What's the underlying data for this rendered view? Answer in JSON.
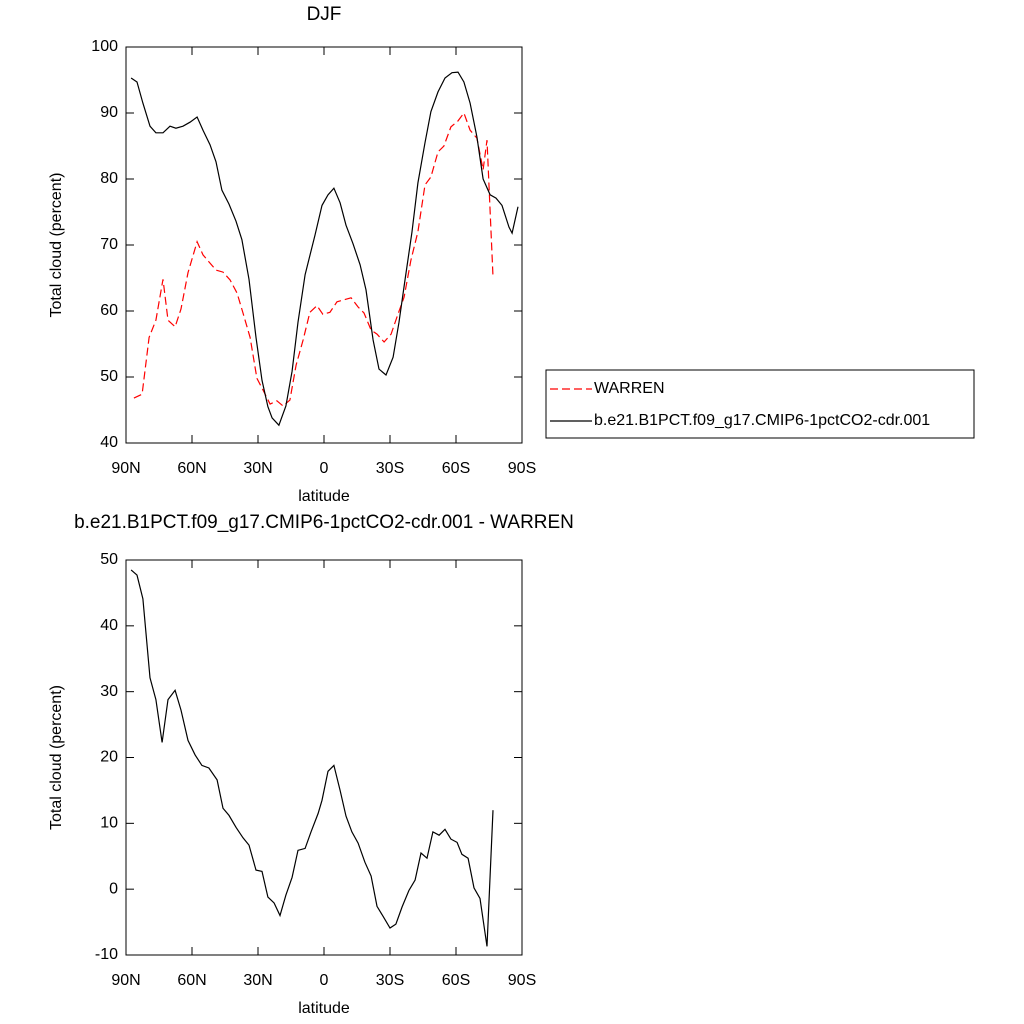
{
  "chart_data": [
    {
      "type": "line",
      "title": "DJF",
      "xlabel": "latitude",
      "ylabel": "Total cloud (percent)",
      "xlim": [
        90,
        -90
      ],
      "xticks": [
        {
          "value": 90,
          "label": "90N"
        },
        {
          "value": 60,
          "label": "60N"
        },
        {
          "value": 30,
          "label": "30N"
        },
        0,
        {
          "value": -30,
          "label": "30S"
        },
        {
          "value": -60,
          "label": "60S"
        },
        {
          "value": -90,
          "label": "90S"
        }
      ],
      "ylim": [
        40,
        100
      ],
      "yticks": [
        40,
        50,
        60,
        70,
        80,
        90,
        100
      ],
      "legend": "right",
      "series": [
        {
          "name": "WARREN",
          "color": "#ff0000",
          "line_style": "dashed",
          "x": [
            86.4,
            82.7,
            79.5,
            76.4,
            73.2,
            70.9,
            67.7,
            65,
            61.8,
            57.7,
            55,
            49.1,
            45.9,
            42.7,
            39.5,
            36.8,
            33.6,
            30.5,
            27.7,
            24.5,
            21.4,
            18.6,
            15.5,
            12.7,
            9.5,
            6.4,
            3.2,
            0.5,
            -2.7,
            -5.9,
            -9.1,
            -12.3,
            -15.5,
            -18.2,
            -21.4,
            -24.1,
            -27.3,
            -30.5,
            -33.2,
            -36.4,
            -39.5,
            -42.7,
            -45.9,
            -48.6,
            -51.8,
            -54.5,
            -57.7,
            -60.9,
            -63.6,
            -66.4,
            -69.5,
            -72.3,
            -74.1,
            -76.8
          ],
          "values": [
            46.8,
            47.4,
            56,
            58.6,
            64.8,
            58.6,
            57.6,
            60.3,
            65.8,
            70.5,
            68.5,
            66.2,
            65.9,
            64.7,
            62.7,
            59.7,
            56,
            49.8,
            48,
            45.9,
            46.4,
            45.6,
            46.5,
            51.8,
            55.6,
            59.8,
            60.8,
            59.5,
            59.8,
            61.4,
            61.7,
            62,
            60.6,
            59.7,
            57.1,
            56.5,
            55.3,
            56.5,
            59.1,
            62.1,
            67.7,
            72,
            79.1,
            80.3,
            84.1,
            85,
            87.9,
            88.8,
            90,
            87.4,
            86.2,
            81.4,
            85.9,
            65.2
          ]
        },
        {
          "name": "b.e21.B1PCT.f09_g17.CMIP6-1pctCO2-cdr.001",
          "color": "#000000",
          "line_style": "solid",
          "x": [
            87.7,
            85,
            82.3,
            79.1,
            76.4,
            73.2,
            70,
            67.3,
            64.1,
            60.9,
            57.7,
            55,
            51.8,
            49.1,
            46.4,
            43.2,
            40,
            37.3,
            34.1,
            30.9,
            28.2,
            25.5,
            23.6,
            20.5,
            17.3,
            14.5,
            11.8,
            8.6,
            4.1,
            0.9,
            -1.8,
            -4.5,
            -7.3,
            -10,
            -13.2,
            -16.4,
            -19.1,
            -22.3,
            -25,
            -28.2,
            -31.4,
            -34.1,
            -36.8,
            -40,
            -42.7,
            -45.9,
            -48.6,
            -51.8,
            -55,
            -58.2,
            -60.9,
            -63.6,
            -66.4,
            -69.5,
            -72.3,
            -75.5,
            -78.2,
            -80.9,
            -84.1,
            -85.5,
            -88.2
          ],
          "values": [
            95.3,
            94.7,
            91.5,
            88,
            87,
            87,
            88,
            87.7,
            88,
            88.6,
            89.4,
            87.4,
            85.2,
            82.6,
            78.3,
            76.2,
            73.6,
            70.8,
            64.8,
            56,
            49.5,
            45.5,
            43.8,
            42.7,
            45.6,
            50.9,
            58.3,
            65.5,
            71.5,
            76,
            77.6,
            78.6,
            76.4,
            73,
            70.2,
            67,
            63.2,
            55.6,
            51.2,
            50.3,
            53,
            58.3,
            64.7,
            72,
            79.4,
            85.5,
            90.2,
            93.2,
            95.3,
            96.1,
            96.2,
            94.7,
            91.5,
            86.4,
            80,
            77.6,
            77.1,
            76,
            72.7,
            71.8,
            75.8
          ]
        }
      ]
    },
    {
      "type": "line",
      "title": "b.e21.B1PCT.f09_g17.CMIP6-1pctCO2-cdr.001 - WARREN",
      "xlabel": "latitude",
      "ylabel": "Total cloud (percent)",
      "xlim": [
        90,
        -90
      ],
      "xticks": [
        {
          "value": 90,
          "label": "90N"
        },
        {
          "value": 60,
          "label": "60N"
        },
        {
          "value": 30,
          "label": "30N"
        },
        0,
        {
          "value": -30,
          "label": "30S"
        },
        {
          "value": -60,
          "label": "60S"
        },
        {
          "value": -90,
          "label": "90S"
        }
      ],
      "ylim": [
        -10,
        50
      ],
      "yticks": [
        -10,
        0,
        10,
        20,
        30,
        40,
        50
      ],
      "series": [
        {
          "color": "#000000",
          "line_style": "solid",
          "x": [
            87.7,
            85,
            82.3,
            79.1,
            76.4,
            73.6,
            70.9,
            67.7,
            65,
            61.8,
            58.6,
            55.5,
            52.3,
            48.6,
            45.9,
            43.2,
            40,
            36.8,
            34.1,
            30.9,
            28.2,
            25.5,
            22.7,
            20,
            17.3,
            14.5,
            11.8,
            8.6,
            5.9,
            2.7,
            0.9,
            -1.8,
            -4.5,
            -7.3,
            -10,
            -12.7,
            -15.5,
            -18.6,
            -21.4,
            -24.1,
            -26.8,
            -30,
            -32.7,
            -35.5,
            -38.6,
            -41.4,
            -44.1,
            -46.8,
            -49.5,
            -52.3,
            -55,
            -57.7,
            -60.5,
            -62.7,
            -65.5,
            -68.2,
            -70.9,
            -74.1,
            -76.8
          ],
          "values": [
            48.5,
            47.7,
            44.1,
            32.1,
            28.8,
            22.3,
            28.8,
            30.2,
            27.2,
            22.6,
            20.4,
            18.8,
            18.4,
            16.6,
            12.3,
            11.2,
            9.4,
            7.8,
            6.7,
            2.9,
            2.7,
            -1.2,
            -2.1,
            -4,
            -0.9,
            1.8,
            5.9,
            6.2,
            8.7,
            11.5,
            13.5,
            17.9,
            18.8,
            15,
            11.1,
            8.7,
            7,
            4.1,
            2,
            -2.6,
            -4.1,
            -5.9,
            -5.3,
            -2.7,
            -0.2,
            1.4,
            5.5,
            4.7,
            8.7,
            8.2,
            9.1,
            7.6,
            7.1,
            5.3,
            4.7,
            0.2,
            -1.4,
            -8.7,
            12
          ]
        }
      ]
    }
  ]
}
